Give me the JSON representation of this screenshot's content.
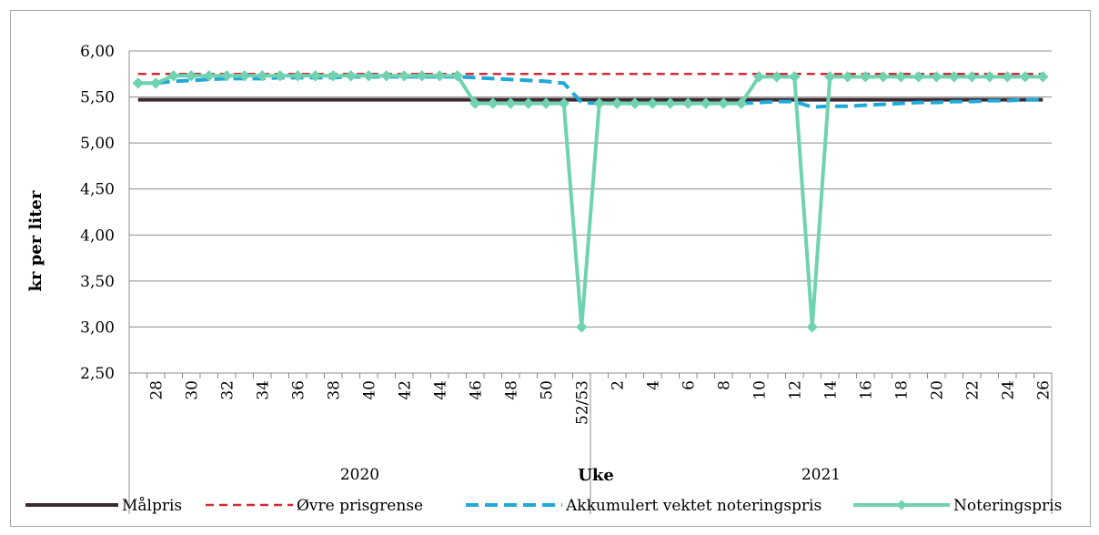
{
  "chart_data": {
    "type": "line",
    "title": "",
    "xlabel": "Uke",
    "ylabel": "kr per liter",
    "ylim": [
      2.5,
      6.0
    ],
    "ytick_step": 0.5,
    "ytick_labels": [
      "2,50",
      "3,00",
      "3,50",
      "4,00",
      "4,50",
      "5,00",
      "5,50",
      "6,00"
    ],
    "grid": true,
    "legend_position": "bottom",
    "x": [
      "27",
      "28",
      "29",
      "30",
      "31",
      "32",
      "33",
      "34",
      "35",
      "36",
      "37",
      "38",
      "39",
      "40",
      "41",
      "42",
      "43",
      "44",
      "45",
      "46",
      "47",
      "48",
      "49",
      "50",
      "51",
      "52/53",
      "1",
      "2",
      "3",
      "4",
      "5",
      "6",
      "7",
      "8",
      "9",
      "10",
      "11",
      "12",
      "13",
      "14",
      "15",
      "16",
      "17",
      "18",
      "19",
      "20",
      "21",
      "22",
      "23",
      "24",
      "25",
      "26"
    ],
    "xtick_labels": [
      "",
      "28",
      "",
      "30",
      "",
      "32",
      "",
      "34",
      "",
      "36",
      "",
      "38",
      "",
      "40",
      "",
      "42",
      "",
      "44",
      "",
      "46",
      "",
      "48",
      "",
      "50",
      "",
      "52/53",
      "",
      "2",
      "",
      "4",
      "",
      "6",
      "",
      "8",
      "",
      "10",
      "",
      "12",
      "",
      "14",
      "",
      "16",
      "",
      "18",
      "",
      "20",
      "",
      "22",
      "",
      "24",
      "",
      "26"
    ],
    "year_groups": [
      {
        "label": "2020",
        "start": 0,
        "end": 25
      },
      {
        "label": "2021",
        "start": 26,
        "end": 51
      }
    ],
    "series": [
      {
        "name": "Målpris",
        "color": "#3d2b33",
        "style": "solid",
        "values": [
          5.47,
          5.47,
          5.47,
          5.47,
          5.47,
          5.47,
          5.47,
          5.47,
          5.47,
          5.47,
          5.47,
          5.47,
          5.47,
          5.47,
          5.47,
          5.47,
          5.47,
          5.47,
          5.47,
          5.47,
          5.47,
          5.47,
          5.47,
          5.47,
          5.47,
          5.47,
          5.47,
          5.47,
          5.47,
          5.47,
          5.47,
          5.47,
          5.47,
          5.47,
          5.47,
          5.47,
          5.47,
          5.47,
          5.47,
          5.47,
          5.47,
          5.47,
          5.47,
          5.47,
          5.47,
          5.47,
          5.47,
          5.47,
          5.47,
          5.47,
          5.47,
          5.47
        ]
      },
      {
        "name": "Øvre prisgrense",
        "color": "#d12b36",
        "style": "dashed",
        "values": [
          5.75,
          5.75,
          5.75,
          5.75,
          5.75,
          5.75,
          5.75,
          5.75,
          5.75,
          5.75,
          5.75,
          5.75,
          5.75,
          5.75,
          5.75,
          5.75,
          5.75,
          5.75,
          5.75,
          5.75,
          5.75,
          5.75,
          5.75,
          5.75,
          5.75,
          5.75,
          5.75,
          5.75,
          5.75,
          5.75,
          5.75,
          5.75,
          5.75,
          5.75,
          5.75,
          5.75,
          5.75,
          5.75,
          5.75,
          5.75,
          5.75,
          5.75,
          5.75,
          5.75,
          5.75,
          5.75,
          5.75,
          5.75,
          5.75,
          5.75,
          5.75,
          5.75
        ]
      },
      {
        "name": "Akkumulert vektet noteringspris",
        "color": "#1fa8d8",
        "style": "dashed-thick",
        "values": [
          5.65,
          5.65,
          5.67,
          5.68,
          5.69,
          5.7,
          5.7,
          5.7,
          5.71,
          5.71,
          5.71,
          5.71,
          5.72,
          5.72,
          5.72,
          5.72,
          5.72,
          5.72,
          5.72,
          5.71,
          5.7,
          5.69,
          5.68,
          5.67,
          5.65,
          5.44,
          5.43,
          5.43,
          5.43,
          5.43,
          5.43,
          5.43,
          5.43,
          5.43,
          5.43,
          5.44,
          5.45,
          5.45,
          5.39,
          5.4,
          5.4,
          5.41,
          5.42,
          5.43,
          5.44,
          5.44,
          5.45,
          5.45,
          5.46,
          5.46,
          5.47,
          5.47
        ]
      },
      {
        "name": "Noteringspris",
        "color": "#6fd2b0",
        "style": "solid-marker",
        "values": [
          5.65,
          5.65,
          5.73,
          5.73,
          5.73,
          5.73,
          5.73,
          5.73,
          5.73,
          5.73,
          5.73,
          5.73,
          5.73,
          5.73,
          5.73,
          5.73,
          5.73,
          5.73,
          5.73,
          5.43,
          5.43,
          5.43,
          5.43,
          5.43,
          5.43,
          3.0,
          5.43,
          5.43,
          5.43,
          5.43,
          5.43,
          5.43,
          5.43,
          5.43,
          5.43,
          5.72,
          5.72,
          5.72,
          3.0,
          5.72,
          5.72,
          5.72,
          5.72,
          5.72,
          5.72,
          5.72,
          5.72,
          5.72,
          5.72,
          5.72,
          5.72,
          5.72
        ]
      }
    ]
  }
}
